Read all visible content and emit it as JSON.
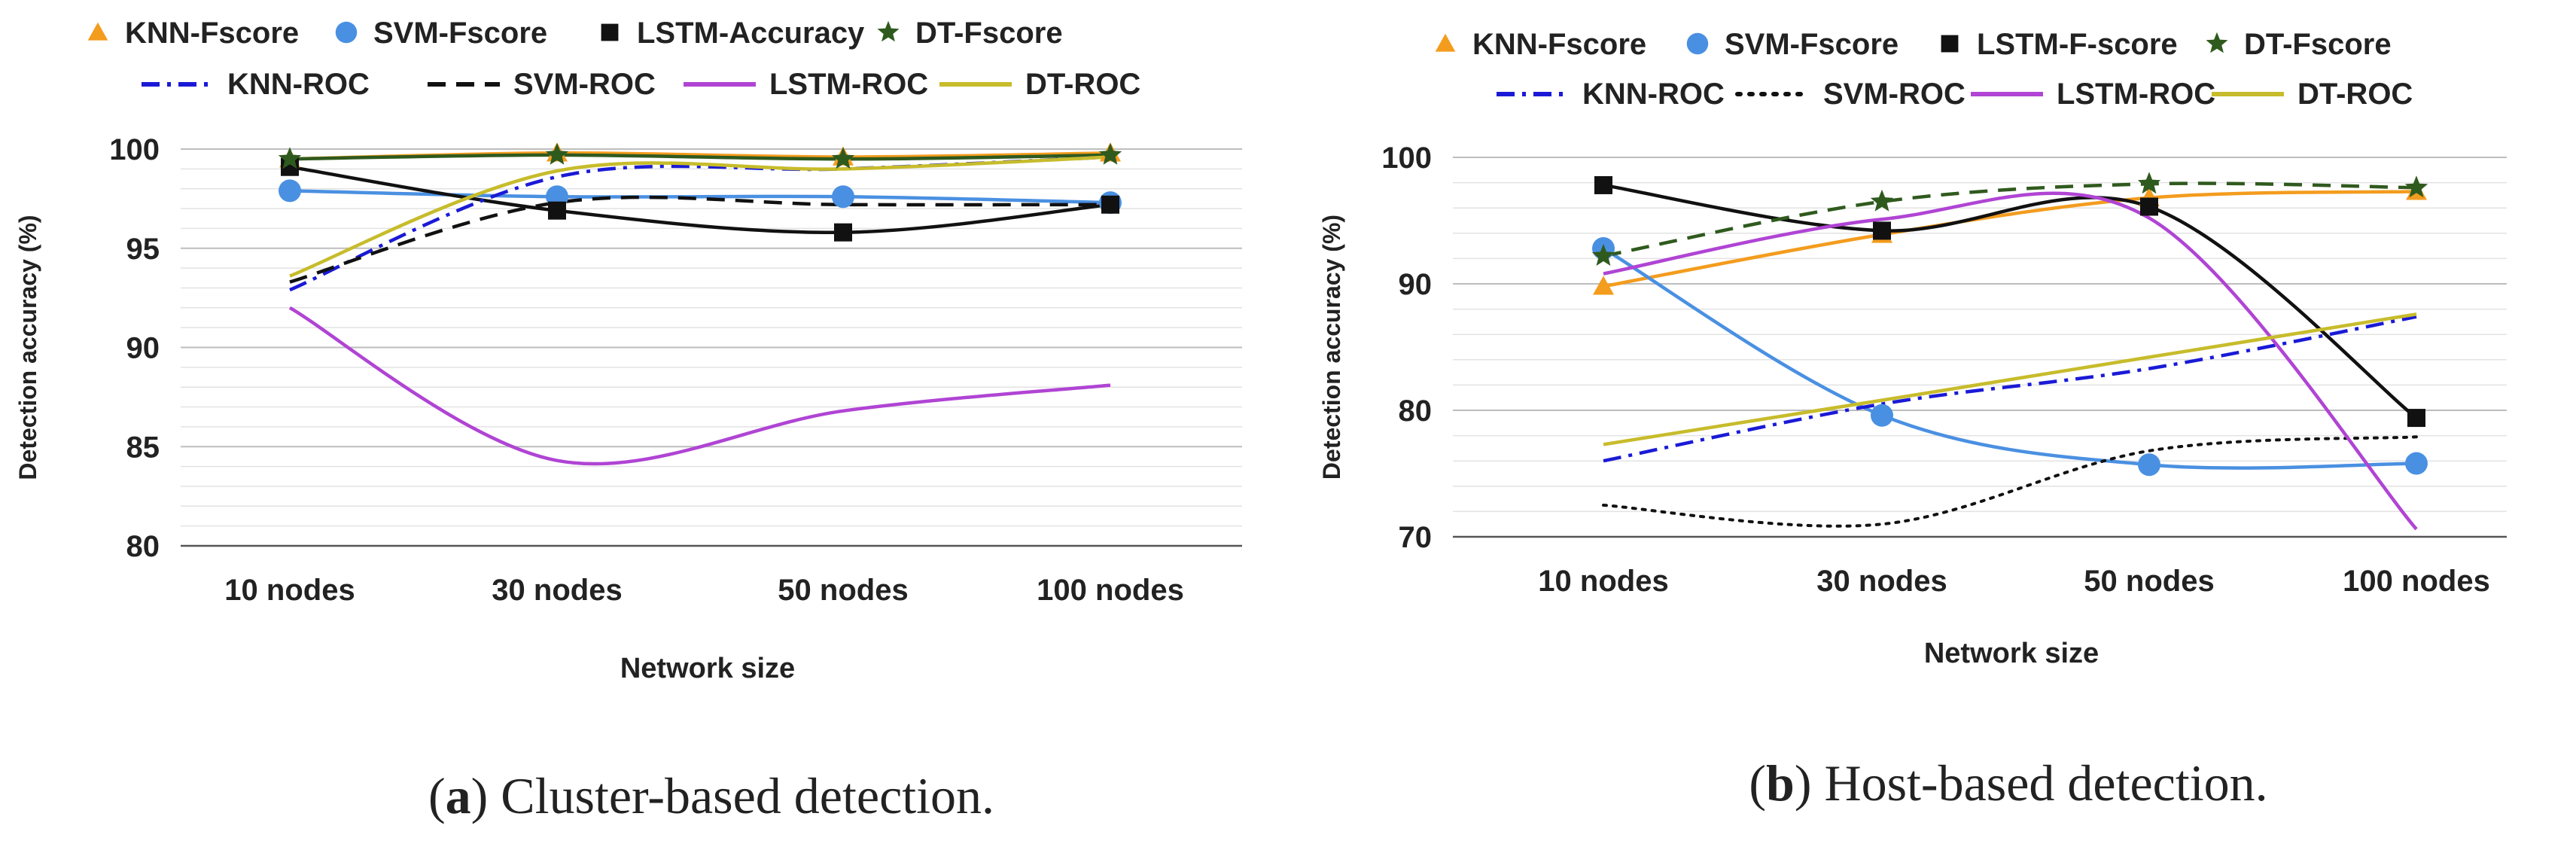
{
  "chart_data": [
    {
      "type": "line",
      "id": "a",
      "caption_label": "a",
      "caption_text": "Cluster-based detection.",
      "xlabel": "Network size",
      "ylabel": "Detection accuracy (%)",
      "categories": [
        "10 nodes",
        "30 nodes",
        "50 nodes",
        "100 nodes"
      ],
      "ylim": [
        80,
        100
      ],
      "yticks": [
        80,
        85,
        90,
        95,
        100
      ],
      "grid": true,
      "legend_position": "top",
      "series": [
        {
          "name": "KNN-Fscore",
          "values": [
            99.5,
            99.8,
            99.6,
            99.8
          ],
          "color": "#f39c1e",
          "marker": "triangle",
          "line": "solid"
        },
        {
          "name": "SVM-Fscore",
          "values": [
            97.9,
            97.6,
            97.6,
            97.3
          ],
          "color": "#4a90e2",
          "marker": "circle",
          "line": "solid"
        },
        {
          "name": "LSTM-Accuracy",
          "values": [
            99.1,
            96.9,
            95.8,
            97.2
          ],
          "color": "#111111",
          "marker": "square",
          "line": "solid"
        },
        {
          "name": "DT-Fscore",
          "values": [
            99.5,
            99.7,
            99.5,
            99.7
          ],
          "color": "#2f5a1e",
          "marker": "star",
          "line": "solid"
        },
        {
          "name": "KNN-ROC",
          "values": [
            92.9,
            98.6,
            99.0,
            99.6
          ],
          "color": "#1a1ad6",
          "marker": "none",
          "line": "dashdot"
        },
        {
          "name": "SVM-ROC",
          "values": [
            93.3,
            97.3,
            97.2,
            97.2
          ],
          "color": "#111111",
          "marker": "none",
          "line": "dashed"
        },
        {
          "name": "LSTM-ROC",
          "values": [
            92.0,
            84.3,
            86.8,
            88.1
          ],
          "color": "#b044d4",
          "marker": "none",
          "line": "solid"
        },
        {
          "name": "DT-ROC",
          "values": [
            93.6,
            98.9,
            99.0,
            99.6
          ],
          "color": "#c7bc2b",
          "marker": "none",
          "line": "solid"
        }
      ]
    },
    {
      "type": "line",
      "id": "b",
      "caption_label": "b",
      "caption_text": "Host-based detection.",
      "xlabel": "Network size",
      "ylabel": "Detection accuracy (%)",
      "categories": [
        "10 nodes",
        "30 nodes",
        "50 nodes",
        "100 nodes"
      ],
      "ylim": [
        70,
        100
      ],
      "yticks": [
        70,
        80,
        90,
        100
      ],
      "grid": true,
      "legend_position": "top",
      "series": [
        {
          "name": "KNN-Fscore",
          "values": [
            89.8,
            93.9,
            96.8,
            97.3
          ],
          "color": "#f39c1e",
          "marker": "triangle",
          "line": "solid"
        },
        {
          "name": "SVM-Fscore",
          "values": [
            92.8,
            79.6,
            75.7,
            75.8
          ],
          "color": "#4a90e2",
          "marker": "circle",
          "line": "solid"
        },
        {
          "name": "LSTM-F-score",
          "values": [
            97.8,
            94.2,
            96.1,
            79.4
          ],
          "color": "#111111",
          "marker": "square",
          "line": "solid"
        },
        {
          "name": "DT-Fscore",
          "values": [
            92.2,
            96.5,
            97.9,
            97.6
          ],
          "color": "#2f5a1e",
          "marker": "star",
          "line": "dashed"
        },
        {
          "name": "KNN-ROC",
          "values": [
            76.0,
            80.5,
            83.3,
            87.4
          ],
          "color": "#1a1ad6",
          "marker": "none",
          "line": "dashdot"
        },
        {
          "name": "SVM-ROC",
          "values": [
            72.5,
            71.0,
            76.8,
            77.9
          ],
          "color": "#111111",
          "marker": "none",
          "line": "dotted"
        },
        {
          "name": "LSTM-ROC",
          "values": [
            90.8,
            95.1,
            95.2,
            70.6
          ],
          "color": "#b044d4",
          "marker": "none",
          "line": "solid"
        },
        {
          "name": "DT-ROC",
          "values": [
            77.3,
            80.8,
            84.2,
            87.6
          ],
          "color": "#c7bc2b",
          "marker": "none",
          "line": "solid"
        }
      ]
    }
  ]
}
